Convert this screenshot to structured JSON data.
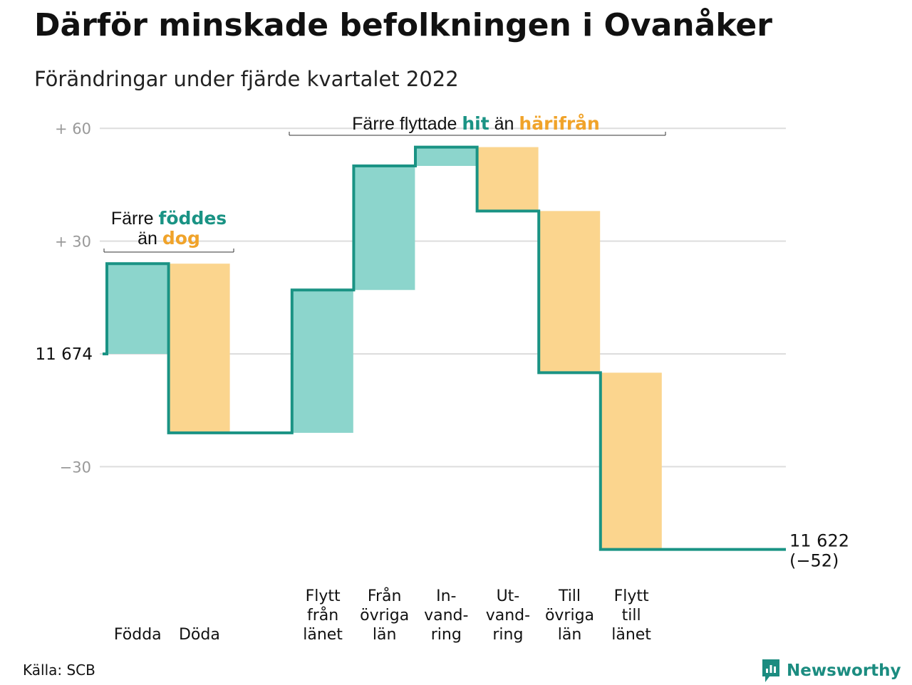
{
  "title": "Därför minskade befolkningen i Ovanåker",
  "subtitle": "Förändringar under fjärde kvartalet 2022",
  "source": "Källa: SCB",
  "logo": {
    "icon": "newsworthy-logo-icon",
    "text": "Newsworthy"
  },
  "colors": {
    "positive": "#8cd5cc",
    "negative": "#fbd58e",
    "line": "#1a9384",
    "accent_positive": "#1a9384",
    "accent_negative": "#f0a32a",
    "grid": "#dddddd",
    "tick": "#999999"
  },
  "annotations": {
    "births": {
      "line1": "Färre ",
      "highlight1": "föddes",
      "line2": "än ",
      "highlight2": "dog"
    },
    "migration": {
      "prefix": "Färre flyttade ",
      "highlight1": "hit",
      "middle": " än ",
      "highlight2": "härifrån"
    }
  },
  "chart_data": {
    "type": "waterfall",
    "start": {
      "value": 11674,
      "label": "11 674"
    },
    "end": {
      "value": 11622,
      "label": "11 622",
      "change_label": "(−52)"
    },
    "y_ticks": [
      {
        "value": 60,
        "label": "+ 60"
      },
      {
        "value": 30,
        "label": "+ 30"
      },
      {
        "value": -30,
        "label": "−30"
      }
    ],
    "ylim": [
      -55,
      65
    ],
    "grid": true,
    "steps": [
      {
        "label": [
          "Födda"
        ],
        "value": 24
      },
      {
        "label": [
          "Döda"
        ],
        "value": -45
      },
      {
        "label": [],
        "value": 0
      },
      {
        "label": [
          "Flytt",
          "från",
          "länet"
        ],
        "value": 38
      },
      {
        "label": [
          "Från",
          "övriga",
          "län"
        ],
        "value": 33
      },
      {
        "label": [
          "In-",
          "vand-",
          "ring"
        ],
        "value": 5
      },
      {
        "label": [
          "Ut-",
          "vand-",
          "ring"
        ],
        "value": -17
      },
      {
        "label": [
          "Till",
          "övriga",
          "län"
        ],
        "value": -43
      },
      {
        "label": [
          "Flytt",
          "till",
          "länet"
        ],
        "value": -47
      }
    ]
  }
}
